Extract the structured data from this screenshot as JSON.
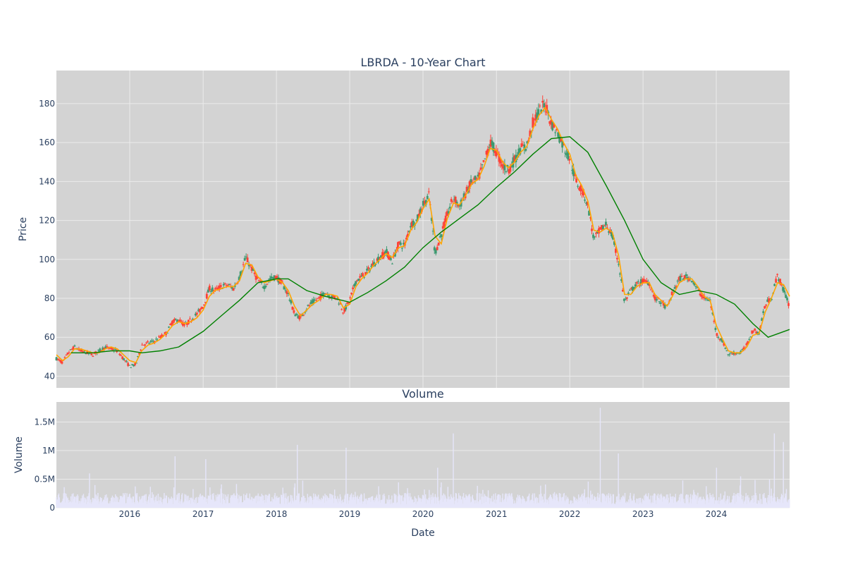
{
  "colors": {
    "plot_bg": "#d3d3d3",
    "grid": "#ebebeb",
    "up": "#3d9970",
    "down": "#ff4136",
    "ma_short": "#ffa500",
    "ma_long": "#008000",
    "volume": "#e6e6fa"
  },
  "chart_data": [
    {
      "type": "candlestick",
      "title": "LBRDA - 10-Year Chart",
      "ylabel": "Price",
      "ylim": [
        34,
        197
      ],
      "yticks": [
        "40",
        "60",
        "80",
        "100",
        "120",
        "140",
        "160",
        "180"
      ],
      "x_range": [
        "2015-01-01",
        "2024-12-31"
      ],
      "xticks": [
        "2016",
        "2017",
        "2018",
        "2019",
        "2020",
        "2021",
        "2022",
        "2023",
        "2024"
      ],
      "grid": true,
      "price_path": [
        [
          "2015-01-01",
          49
        ],
        [
          "2015-02-01",
          47
        ],
        [
          "2015-03-01",
          52
        ],
        [
          "2015-04-01",
          55
        ],
        [
          "2015-05-01",
          53
        ],
        [
          "2015-06-01",
          52
        ],
        [
          "2015-07-01",
          51
        ],
        [
          "2015-08-01",
          53
        ],
        [
          "2015-09-01",
          55
        ],
        [
          "2015-10-01",
          54
        ],
        [
          "2015-11-01",
          53
        ],
        [
          "2015-12-01",
          49
        ],
        [
          "2016-01-01",
          45
        ],
        [
          "2016-02-01",
          46
        ],
        [
          "2016-03-01",
          56
        ],
        [
          "2016-04-01",
          57
        ],
        [
          "2016-05-01",
          58
        ],
        [
          "2016-06-01",
          60
        ],
        [
          "2016-07-01",
          62
        ],
        [
          "2016-08-01",
          68
        ],
        [
          "2016-09-01",
          69
        ],
        [
          "2016-10-01",
          66
        ],
        [
          "2016-11-01",
          69
        ],
        [
          "2016-12-01",
          72
        ],
        [
          "2017-01-01",
          76
        ],
        [
          "2017-02-01",
          85
        ],
        [
          "2017-03-01",
          84
        ],
        [
          "2017-04-01",
          86
        ],
        [
          "2017-05-01",
          87
        ],
        [
          "2017-06-01",
          85
        ],
        [
          "2017-07-01",
          91
        ],
        [
          "2017-08-01",
          101
        ],
        [
          "2017-09-01",
          95
        ],
        [
          "2017-10-01",
          89
        ],
        [
          "2017-11-01",
          86
        ],
        [
          "2017-12-01",
          90
        ],
        [
          "2018-01-01",
          91
        ],
        [
          "2018-02-01",
          87
        ],
        [
          "2018-03-01",
          82
        ],
        [
          "2018-04-01",
          72
        ],
        [
          "2018-05-01",
          70
        ],
        [
          "2018-06-01",
          75
        ],
        [
          "2018-07-01",
          78
        ],
        [
          "2018-08-01",
          80
        ],
        [
          "2018-09-01",
          83
        ],
        [
          "2018-10-01",
          81
        ],
        [
          "2018-11-01",
          80
        ],
        [
          "2018-12-01",
          73
        ],
        [
          "2019-01-01",
          79
        ],
        [
          "2019-02-01",
          89
        ],
        [
          "2019-03-01",
          91
        ],
        [
          "2019-04-01",
          94
        ],
        [
          "2019-05-01",
          98
        ],
        [
          "2019-06-01",
          101
        ],
        [
          "2019-07-01",
          104
        ],
        [
          "2019-08-01",
          99
        ],
        [
          "2019-09-01",
          108
        ],
        [
          "2019-10-01",
          107
        ],
        [
          "2019-11-01",
          118
        ],
        [
          "2019-12-01",
          120
        ],
        [
          "2020-01-01",
          128
        ],
        [
          "2020-02-01",
          133
        ],
        [
          "2020-03-01",
          103
        ],
        [
          "2020-04-01",
          113
        ],
        [
          "2020-05-01",
          123
        ],
        [
          "2020-06-01",
          132
        ],
        [
          "2020-07-01",
          127
        ],
        [
          "2020-08-01",
          134
        ],
        [
          "2020-09-01",
          140
        ],
        [
          "2020-10-01",
          141
        ],
        [
          "2020-11-01",
          150
        ],
        [
          "2020-12-01",
          160
        ],
        [
          "2021-01-01",
          155
        ],
        [
          "2021-02-01",
          148
        ],
        [
          "2021-03-01",
          146
        ],
        [
          "2021-04-01",
          151
        ],
        [
          "2021-05-01",
          157
        ],
        [
          "2021-06-01",
          158
        ],
        [
          "2021-07-01",
          170
        ],
        [
          "2021-08-01",
          176
        ],
        [
          "2021-09-01",
          180
        ],
        [
          "2021-10-01",
          170
        ],
        [
          "2021-11-01",
          165
        ],
        [
          "2021-12-01",
          158
        ],
        [
          "2022-01-01",
          152
        ],
        [
          "2022-02-01",
          140
        ],
        [
          "2022-03-01",
          136
        ],
        [
          "2022-04-01",
          128
        ],
        [
          "2022-05-01",
          110
        ],
        [
          "2022-06-01",
          115
        ],
        [
          "2022-07-01",
          118
        ],
        [
          "2022-08-01",
          112
        ],
        [
          "2022-09-01",
          98
        ],
        [
          "2022-10-01",
          78
        ],
        [
          "2022-11-01",
          84
        ],
        [
          "2022-12-01",
          87
        ],
        [
          "2023-01-01",
          89
        ],
        [
          "2023-02-01",
          88
        ],
        [
          "2023-03-01",
          80
        ],
        [
          "2023-04-01",
          78
        ],
        [
          "2023-05-01",
          75
        ],
        [
          "2023-06-01",
          84
        ],
        [
          "2023-07-01",
          90
        ],
        [
          "2023-08-01",
          91
        ],
        [
          "2023-09-01",
          90
        ],
        [
          "2023-10-01",
          84
        ],
        [
          "2023-11-01",
          80
        ],
        [
          "2023-12-01",
          79
        ],
        [
          "2024-01-01",
          62
        ],
        [
          "2024-02-01",
          58
        ],
        [
          "2024-03-01",
          51
        ],
        [
          "2024-04-01",
          52
        ],
        [
          "2024-05-01",
          52
        ],
        [
          "2024-06-01",
          56
        ],
        [
          "2024-07-01",
          64
        ],
        [
          "2024-08-01",
          62
        ],
        [
          "2024-09-01",
          77
        ],
        [
          "2024-10-01",
          80
        ],
        [
          "2024-11-01",
          92
        ],
        [
          "2024-12-01",
          84
        ],
        [
          "2024-12-31",
          76
        ]
      ],
      "ma_short_path": [
        [
          "2015-01-01",
          51
        ],
        [
          "2015-02-01",
          48
        ],
        [
          "2015-03-01",
          50
        ],
        [
          "2015-04-01",
          54
        ],
        [
          "2015-05-01",
          54
        ],
        [
          "2015-06-01",
          53
        ],
        [
          "2015-07-01",
          52
        ],
        [
          "2015-08-01",
          52
        ],
        [
          "2015-09-01",
          54
        ],
        [
          "2015-10-01",
          55
        ],
        [
          "2015-11-01",
          54
        ],
        [
          "2015-12-01",
          51
        ],
        [
          "2016-01-01",
          48
        ],
        [
          "2016-02-01",
          47
        ],
        [
          "2016-03-01",
          53
        ],
        [
          "2016-04-01",
          56
        ],
        [
          "2016-05-01",
          57
        ],
        [
          "2016-06-01",
          59
        ],
        [
          "2016-07-01",
          62
        ],
        [
          "2016-08-01",
          66
        ],
        [
          "2016-09-01",
          68
        ],
        [
          "2016-10-01",
          67
        ],
        [
          "2016-11-01",
          68
        ],
        [
          "2016-12-01",
          70
        ],
        [
          "2017-01-01",
          74
        ],
        [
          "2017-02-01",
          81
        ],
        [
          "2017-03-01",
          84
        ],
        [
          "2017-04-01",
          85
        ],
        [
          "2017-05-01",
          86
        ],
        [
          "2017-06-01",
          86
        ],
        [
          "2017-07-01",
          89
        ],
        [
          "2017-08-01",
          98
        ],
        [
          "2017-09-01",
          97
        ],
        [
          "2017-10-01",
          91
        ],
        [
          "2017-11-01",
          88
        ],
        [
          "2017-12-01",
          89
        ],
        [
          "2018-01-01",
          90
        ],
        [
          "2018-02-01",
          88
        ],
        [
          "2018-03-01",
          84
        ],
        [
          "2018-04-01",
          76
        ],
        [
          "2018-05-01",
          71
        ],
        [
          "2018-06-01",
          74
        ],
        [
          "2018-07-01",
          77
        ],
        [
          "2018-08-01",
          79
        ],
        [
          "2018-09-01",
          82
        ],
        [
          "2018-10-01",
          82
        ],
        [
          "2018-11-01",
          81
        ],
        [
          "2018-12-01",
          75
        ],
        [
          "2019-01-01",
          77
        ],
        [
          "2019-02-01",
          86
        ],
        [
          "2019-03-01",
          90
        ],
        [
          "2019-04-01",
          93
        ],
        [
          "2019-05-01",
          97
        ],
        [
          "2019-06-01",
          100
        ],
        [
          "2019-07-01",
          103
        ],
        [
          "2019-08-01",
          101
        ],
        [
          "2019-09-01",
          106
        ],
        [
          "2019-10-01",
          107
        ],
        [
          "2019-11-01",
          115
        ],
        [
          "2019-12-01",
          119
        ],
        [
          "2020-01-01",
          126
        ],
        [
          "2020-02-01",
          131
        ],
        [
          "2020-03-01",
          112
        ],
        [
          "2020-04-01",
          108
        ],
        [
          "2020-05-01",
          121
        ],
        [
          "2020-06-01",
          129
        ],
        [
          "2020-07-01",
          128
        ],
        [
          "2020-08-01",
          133
        ],
        [
          "2020-09-01",
          139
        ],
        [
          "2020-10-01",
          141
        ],
        [
          "2020-11-01",
          148
        ],
        [
          "2020-12-01",
          157
        ],
        [
          "2021-01-01",
          156
        ],
        [
          "2021-02-01",
          150
        ],
        [
          "2021-03-01",
          147
        ],
        [
          "2021-04-01",
          150
        ],
        [
          "2021-05-01",
          155
        ],
        [
          "2021-06-01",
          158
        ],
        [
          "2021-07-01",
          167
        ],
        [
          "2021-08-01",
          174
        ],
        [
          "2021-09-01",
          178
        ],
        [
          "2021-10-01",
          172
        ],
        [
          "2021-11-01",
          167
        ],
        [
          "2021-12-01",
          160
        ],
        [
          "2022-01-01",
          154
        ],
        [
          "2022-02-01",
          143
        ],
        [
          "2022-03-01",
          138
        ],
        [
          "2022-04-01",
          130
        ],
        [
          "2022-05-01",
          115
        ],
        [
          "2022-06-01",
          114
        ],
        [
          "2022-07-01",
          116
        ],
        [
          "2022-08-01",
          114
        ],
        [
          "2022-09-01",
          102
        ],
        [
          "2022-10-01",
          82
        ],
        [
          "2022-11-01",
          82
        ],
        [
          "2022-12-01",
          86
        ],
        [
          "2023-01-01",
          88
        ],
        [
          "2023-02-01",
          88
        ],
        [
          "2023-03-01",
          82
        ],
        [
          "2023-04-01",
          79
        ],
        [
          "2023-05-01",
          76
        ],
        [
          "2023-06-01",
          82
        ],
        [
          "2023-07-01",
          88
        ],
        [
          "2023-08-01",
          90
        ],
        [
          "2023-09-01",
          90
        ],
        [
          "2023-10-01",
          86
        ],
        [
          "2023-11-01",
          81
        ],
        [
          "2023-12-01",
          79
        ],
        [
          "2024-01-01",
          66
        ],
        [
          "2024-02-01",
          59
        ],
        [
          "2024-03-01",
          53
        ],
        [
          "2024-04-01",
          52
        ],
        [
          "2024-05-01",
          52
        ],
        [
          "2024-06-01",
          55
        ],
        [
          "2024-07-01",
          61
        ],
        [
          "2024-08-01",
          62
        ],
        [
          "2024-09-01",
          73
        ],
        [
          "2024-10-01",
          80
        ],
        [
          "2024-11-01",
          88
        ],
        [
          "2024-12-01",
          87
        ],
        [
          "2024-12-31",
          81
        ]
      ],
      "ma_long_path": [
        [
          "2015-03-15",
          52
        ],
        [
          "2015-07-01",
          52
        ],
        [
          "2015-10-01",
          53
        ],
        [
          "2016-01-01",
          53
        ],
        [
          "2016-03-01",
          52
        ],
        [
          "2016-06-01",
          53
        ],
        [
          "2016-09-01",
          55
        ],
        [
          "2017-01-01",
          63
        ],
        [
          "2017-04-01",
          71
        ],
        [
          "2017-07-01",
          79
        ],
        [
          "2017-10-01",
          88
        ],
        [
          "2018-01-01",
          90
        ],
        [
          "2018-03-01",
          90
        ],
        [
          "2018-06-01",
          84
        ],
        [
          "2018-09-01",
          81
        ],
        [
          "2019-01-01",
          78
        ],
        [
          "2019-04-01",
          83
        ],
        [
          "2019-07-01",
          89
        ],
        [
          "2019-10-01",
          96
        ],
        [
          "2020-01-01",
          106
        ],
        [
          "2020-04-01",
          114
        ],
        [
          "2020-07-01",
          121
        ],
        [
          "2020-10-01",
          128
        ],
        [
          "2021-01-01",
          137
        ],
        [
          "2021-04-01",
          145
        ],
        [
          "2021-07-01",
          154
        ],
        [
          "2021-10-01",
          162
        ],
        [
          "2022-01-01",
          163
        ],
        [
          "2022-04-01",
          155
        ],
        [
          "2022-07-01",
          138
        ],
        [
          "2022-10-01",
          120
        ],
        [
          "2023-01-01",
          100
        ],
        [
          "2023-04-01",
          88
        ],
        [
          "2023-07-01",
          82
        ],
        [
          "2023-10-01",
          84
        ],
        [
          "2024-01-01",
          82
        ],
        [
          "2024-04-01",
          77
        ],
        [
          "2024-07-01",
          67
        ],
        [
          "2024-09-15",
          60
        ],
        [
          "2024-12-31",
          64
        ]
      ]
    },
    {
      "type": "bar",
      "title": "Volume",
      "xlabel": "Date",
      "ylabel": "Volume",
      "ylim": [
        0,
        1850000
      ],
      "yticks": [
        "0",
        "0.5M",
        "1M",
        "1.5M"
      ],
      "spikes": [
        [
          "2015-06-15",
          600000
        ],
        [
          "2016-08-15",
          900000
        ],
        [
          "2017-01-15",
          850000
        ],
        [
          "2018-04-15",
          1100000
        ],
        [
          "2018-12-15",
          1050000
        ],
        [
          "2020-03-15",
          700000
        ],
        [
          "2020-06-01",
          1300000
        ],
        [
          "2022-06-01",
          1750000
        ],
        [
          "2022-09-01",
          950000
        ],
        [
          "2024-01-01",
          700000
        ],
        [
          "2024-05-01",
          550000
        ],
        [
          "2024-10-15",
          1300000
        ],
        [
          "2024-12-01",
          1150000
        ]
      ]
    }
  ]
}
